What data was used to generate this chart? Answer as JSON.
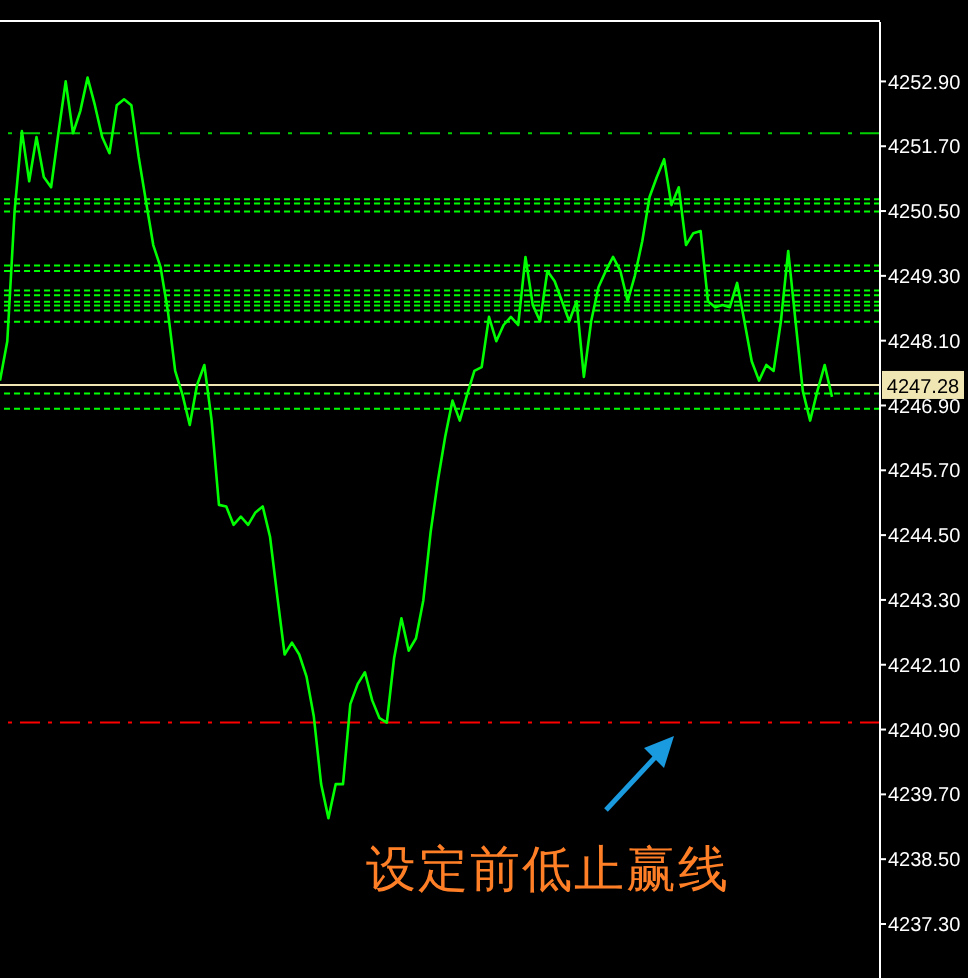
{
  "chart_data": {
    "type": "line",
    "annotations": [
      "设定前低止赢线"
    ],
    "categories": [
      null,
      null,
      null,
      null,
      null,
      null,
      null,
      null,
      null,
      null,
      null,
      null,
      null,
      null,
      null,
      null,
      null,
      null,
      null,
      null,
      null,
      null,
      null,
      null,
      null,
      null,
      null,
      null,
      null,
      null,
      null,
      null,
      null,
      null,
      null,
      null,
      null,
      null,
      null,
      null,
      null,
      null,
      null,
      null,
      null,
      null,
      null,
      null,
      null,
      null,
      null,
      null,
      null,
      null,
      null,
      null,
      null,
      null,
      null,
      null,
      null,
      null,
      null,
      null,
      null,
      null,
      null,
      null,
      null,
      null,
      null,
      null,
      null,
      null,
      null,
      null,
      null,
      null,
      null,
      null,
      null,
      null,
      null,
      null,
      null,
      null,
      null,
      null,
      null,
      null,
      null,
      null,
      null,
      null,
      null,
      null,
      null,
      null,
      null,
      null,
      null,
      null,
      null,
      null,
      null,
      null,
      null,
      null,
      null,
      null,
      null,
      null,
      null,
      null,
      null
    ],
    "series": [
      {
        "color": "#00ff00",
        "values": [
          4247.36,
          4248.09,
          4250.5,
          4251.98,
          4251.05,
          4251.87,
          4251.13,
          4250.94,
          4251.94,
          4252.9,
          4251.94,
          4252.35,
          4252.97,
          4252.46,
          4251.87,
          4251.57,
          4252.46,
          4252.57,
          4252.46,
          4251.5,
          4250.68,
          4249.87,
          4249.46,
          4248.65,
          4247.54,
          4247.1,
          4246.54,
          4247.28,
          4247.65,
          4246.62,
          4245.06,
          4245.03,
          4244.69,
          4244.84,
          4244.69,
          4244.92,
          4245.03,
          4244.47,
          4243.36,
          4242.29,
          4242.51,
          4242.29,
          4241.88,
          4241.14,
          4239.89,
          4239.26,
          4239.89,
          4239.89,
          4241.37,
          4241.74,
          4241.96,
          4241.44,
          4241.11,
          4241.03,
          4242.22,
          4242.96,
          4242.36,
          4242.59,
          4243.29,
          4244.55,
          4245.51,
          4246.32,
          4246.99,
          4246.62,
          4247.1,
          4247.54,
          4247.61,
          4248.54,
          4248.09,
          4248.39,
          4248.54,
          4248.39,
          4249.65,
          4248.76,
          4248.46,
          4249.39,
          4249.2,
          4248.83,
          4248.46,
          4248.83,
          4247.43,
          4248.46,
          4249.09,
          4249.39,
          4249.65,
          4249.39,
          4248.83,
          4249.31,
          4249.94,
          4250.76,
          4251.13,
          4251.46,
          4250.61,
          4250.94,
          4249.87,
          4250.09,
          4250.13,
          4248.83,
          4248.72,
          4248.76,
          4248.72,
          4249.17,
          4248.46,
          4247.72,
          4247.36,
          4247.65,
          4247.54,
          4248.46,
          4249.76,
          4248.46,
          4247.17,
          4246.62,
          4247.17,
          4247.65,
          4247.06
        ]
      }
    ],
    "ylim": [
      4236.3,
      4254.0
    ],
    "yticks": [
      {
        "value": 4252.9,
        "label": "4252.90"
      },
      {
        "value": 4251.7,
        "label": "4251.70"
      },
      {
        "value": 4250.5,
        "label": "4250.50"
      },
      {
        "value": 4249.3,
        "label": "4249.30"
      },
      {
        "value": 4248.1,
        "label": "4248.10"
      },
      {
        "value": 4246.9,
        "label": "4246.90"
      },
      {
        "value": 4245.7,
        "label": "4245.70"
      },
      {
        "value": 4244.5,
        "label": "4244.50"
      },
      {
        "value": 4243.3,
        "label": "4243.30"
      },
      {
        "value": 4242.1,
        "label": "4242.10"
      },
      {
        "value": 4240.9,
        "label": "4240.90"
      },
      {
        "value": 4239.7,
        "label": "4239.70"
      },
      {
        "value": 4238.5,
        "label": "4238.50"
      },
      {
        "value": 4237.3,
        "label": "4237.30"
      }
    ],
    "tick_labels": "y",
    "marker": "none",
    "line_style": "solid",
    "ref_lines": [
      {
        "axis": "y",
        "value": 4251.94,
        "color": "#00d000",
        "line_style": "dashdot"
      },
      {
        "axis": "y",
        "value": 4250.72,
        "color": "#00ff00",
        "line_style": "dashed"
      },
      {
        "axis": "y",
        "value": 4250.64,
        "color": "#00ff00",
        "line_style": "dashed"
      },
      {
        "axis": "y",
        "value": 4250.49,
        "color": "#00ff00",
        "line_style": "dashed"
      },
      {
        "axis": "y",
        "value": 4249.49,
        "color": "#00ff00",
        "line_style": "dashed"
      },
      {
        "axis": "y",
        "value": 4249.39,
        "color": "#00ff00",
        "line_style": "dashed"
      },
      {
        "axis": "y",
        "value": 4249.03,
        "color": "#00ff00",
        "line_style": "dashed"
      },
      {
        "axis": "y",
        "value": 4248.94,
        "color": "#00ff00",
        "line_style": "dashed"
      },
      {
        "axis": "y",
        "value": 4248.82,
        "color": "#00ff00",
        "line_style": "dashed"
      },
      {
        "axis": "y",
        "value": 4248.75,
        "color": "#00ff00",
        "line_style": "dashed"
      },
      {
        "axis": "y",
        "value": 4248.66,
        "color": "#00ff00",
        "line_style": "dashed"
      },
      {
        "axis": "y",
        "value": 4248.45,
        "color": "#00ff00",
        "line_style": "dashed"
      },
      {
        "axis": "y",
        "value": 4247.28,
        "color": "#f0e6b4",
        "line_style": "solid",
        "label": "4247.28"
      },
      {
        "axis": "y",
        "value": 4247.12,
        "color": "#00ff00",
        "line_style": "dashed"
      },
      {
        "axis": "y",
        "value": 4246.84,
        "color": "#00ff00",
        "line_style": "dashed"
      },
      {
        "axis": "y",
        "value": 4241.03,
        "color": "#ff0000",
        "line_style": "dashdot"
      }
    ]
  }
}
